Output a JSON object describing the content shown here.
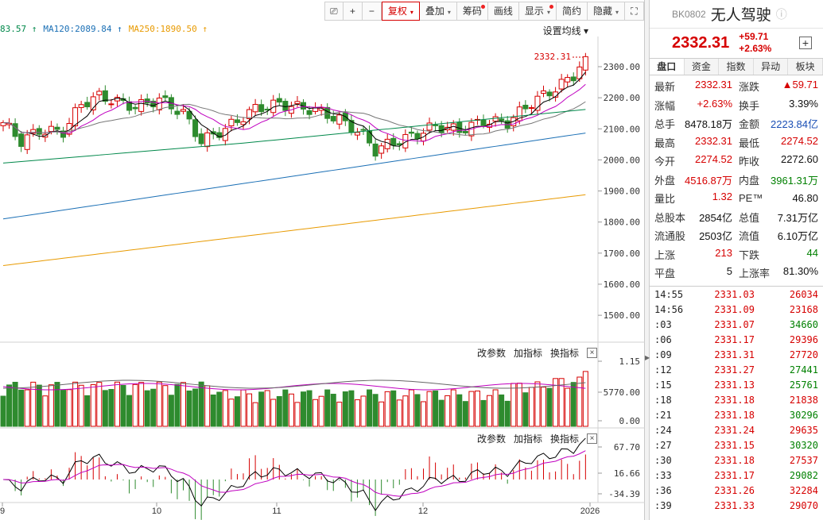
{
  "toolbar": {
    "items": [
      {
        "id": "restore",
        "label": "⎚"
      },
      {
        "id": "zoom-in",
        "label": "+"
      },
      {
        "id": "zoom-out",
        "label": "−"
      },
      {
        "id": "fuquan",
        "label": "复权",
        "dd": "▾",
        "sel": true
      },
      {
        "id": "diejia",
        "label": "叠加",
        "dd": "▾"
      },
      {
        "id": "chouma",
        "label": "筹码",
        "dot": true
      },
      {
        "id": "huaxian",
        "label": "画线"
      },
      {
        "id": "xianshi",
        "label": "显示",
        "dd": "▾",
        "dot": true
      },
      {
        "id": "jianyue",
        "label": "简约"
      },
      {
        "id": "yincang",
        "label": "隐藏",
        "dd": "▾"
      },
      {
        "id": "fullscreen",
        "label": "⛶"
      }
    ]
  },
  "ma_legend": [
    {
      "text": "83.57 ↑",
      "color": "#00884a"
    },
    {
      "text": "MA120:2089.84 ↑",
      "color": "#1a6fb5"
    },
    {
      "text": "MA250:1890.50 ↑",
      "color": "#e89a00"
    }
  ],
  "settings_label": "设置均线 ▾",
  "last_price_tag": "2332.31",
  "y_axis": [
    "2300.00",
    "2200.00",
    "2100.00",
    "2000.00",
    "1900.00",
    "1800.00",
    "1700.00",
    "1600.00",
    "1500.00"
  ],
  "vol_axis": [
    "1.15",
    "5770.00",
    "0.00"
  ],
  "macd_axis": [
    "67.70",
    "16.66",
    "-34.39"
  ],
  "x_axis": [
    "9",
    "10",
    "11",
    "12",
    "2026"
  ],
  "panel_buttons": [
    "改参数",
    "加指标",
    "换指标"
  ],
  "close_x": "×",
  "colors": {
    "up": "#d60000",
    "down": "#2e8b2e",
    "ma5": "#000000",
    "ma10": "#c000c0",
    "ma20": "#777777",
    "ma60": "#00884a",
    "ma120": "#1a6fb5",
    "ma250": "#e89a00"
  },
  "quote": {
    "code": "BK0802",
    "name": "无人驾驶",
    "info_icon": "ⓘ",
    "price": "2332.31",
    "change": "+59.71",
    "pct": "+2.63%",
    "plus": "+",
    "tabs": [
      "盘口",
      "资金",
      "指数",
      "异动",
      "板块"
    ],
    "rows": [
      [
        [
          "最新",
          "2332.31",
          "red"
        ],
        [
          "涨跌",
          "▲59.71",
          "red"
        ]
      ],
      [
        [
          "涨幅",
          "+2.63%",
          "red"
        ],
        [
          "换手",
          "3.39%",
          "blk"
        ]
      ],
      [
        [
          "总手",
          "8478.18万",
          "blk"
        ],
        [
          "金额",
          "2223.84亿",
          "blue"
        ]
      ],
      [
        [
          "最高",
          "2332.31",
          "red"
        ],
        [
          "最低",
          "2274.52",
          "red"
        ]
      ],
      [
        [
          "今开",
          "2274.52",
          "red"
        ],
        [
          "昨收",
          "2272.60",
          "blk"
        ]
      ],
      [
        [
          "外盘",
          "4516.87万",
          "red"
        ],
        [
          "内盘",
          "3961.31万",
          "green"
        ]
      ],
      [
        [
          "量比",
          "1.32",
          "red"
        ],
        [
          "PE™",
          "46.80",
          "blk"
        ]
      ],
      [
        [
          "总股本",
          "2854亿",
          "blk"
        ],
        [
          "总值",
          "7.31万亿",
          "blk"
        ]
      ],
      [
        [
          "流通股",
          "2503亿",
          "blk"
        ],
        [
          "流值",
          "6.10万亿",
          "blk"
        ]
      ],
      [
        [
          "上涨",
          "213",
          "red"
        ],
        [
          "下跌",
          "44",
          "green"
        ]
      ],
      [
        [
          "平盘",
          "5",
          "blk"
        ],
        [
          "上涨率",
          "81.30%",
          "blk"
        ]
      ]
    ]
  },
  "ticks": [
    [
      "14:55",
      "2331.03",
      "26034",
      "red"
    ],
    [
      "14:56",
      "2331.09",
      "23168",
      "red"
    ],
    [
      ":03",
      "2331.07",
      "34660",
      "green"
    ],
    [
      ":06",
      "2331.17",
      "29396",
      "red"
    ],
    [
      ":09",
      "2331.31",
      "27720",
      "red"
    ],
    [
      ":12",
      "2331.27",
      "27441",
      "green"
    ],
    [
      ":15",
      "2331.13",
      "25761",
      "green"
    ],
    [
      ":18",
      "2331.18",
      "21838",
      "red"
    ],
    [
      ":21",
      "2331.18",
      "30296",
      "green"
    ],
    [
      ":24",
      "2331.24",
      "29635",
      "red"
    ],
    [
      ":27",
      "2331.15",
      "30320",
      "green"
    ],
    [
      ":30",
      "2331.18",
      "27537",
      "red"
    ],
    [
      ":33",
      "2331.17",
      "29082",
      "green"
    ],
    [
      ":36",
      "2331.26",
      "32284",
      "red"
    ],
    [
      ":39",
      "2331.33",
      "29070",
      "red"
    ]
  ]
}
